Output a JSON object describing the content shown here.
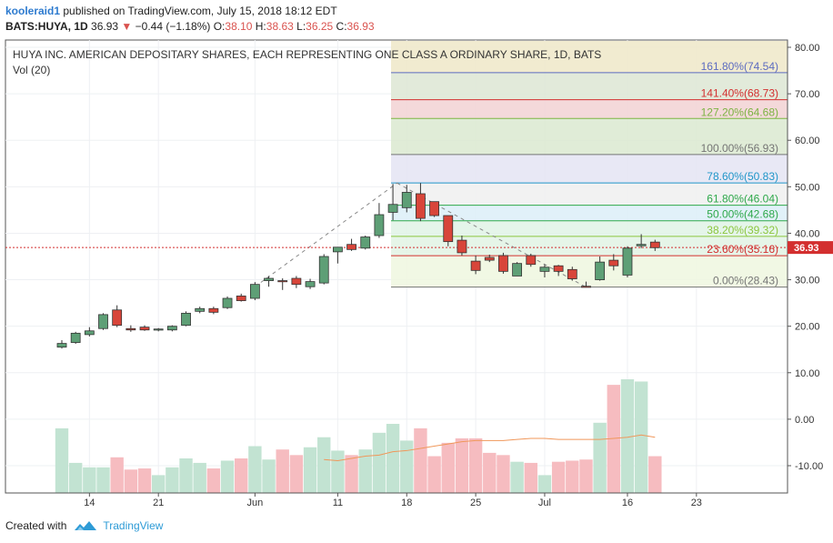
{
  "header": {
    "user": "kooleraid1",
    "published": " published on TradingView.com, July 15, 2018 18:12 EDT",
    "symbol": "BATS:HUYA, 1D",
    "last": "36.93",
    "arrow": "▼",
    "change": "−0.44 (−1.18%)",
    "o_label": "O:",
    "o": "38.10",
    "h_label": "H:",
    "h": "38.63",
    "l_label": "L:",
    "l": "36.25",
    "c_label": "C:",
    "c": "36.93"
  },
  "footer": {
    "created": "Created with",
    "brand": "TradingView"
  },
  "chart_data": {
    "type": "candlestick",
    "title": "HUYA INC. AMERICAN DEPOSITARY SHARES, EACH REPRESENTING ONE CLASS A ORDINARY SHARE, 1D, BATS",
    "volume_label": "Vol (20)",
    "ylim": [
      -15,
      82
    ],
    "y_ticks": [
      80,
      70,
      60,
      50,
      40,
      30,
      20,
      10,
      0,
      -10
    ],
    "y_tick_labels": [
      "80.00",
      "70.00",
      "60.00",
      "50.00",
      "40.00",
      "30.00",
      "20.00",
      "10.00",
      "0.00",
      "-10.00"
    ],
    "x_ticks": [
      {
        "day": 2,
        "label": "14"
      },
      {
        "day": 7,
        "label": "21"
      },
      {
        "day": 14,
        "label": "Jun"
      },
      {
        "day": 20,
        "label": "11"
      },
      {
        "day": 25,
        "label": "18"
      },
      {
        "day": 30,
        "label": "25"
      },
      {
        "day": 35,
        "label": "Jul"
      },
      {
        "day": 41,
        "label": "16"
      },
      {
        "day": 46,
        "label": "23"
      }
    ],
    "last_price": 36.93,
    "last_price_label": "36.93",
    "candles": [
      {
        "d": 0,
        "o": 15.5,
        "h": 17,
        "l": 15.2,
        "c": 16.3
      },
      {
        "d": 1,
        "o": 16.5,
        "h": 18.8,
        "l": 16.2,
        "c": 18.5
      },
      {
        "d": 2,
        "o": 18.2,
        "h": 19.8,
        "l": 17.8,
        "c": 19
      },
      {
        "d": 3,
        "o": 19.5,
        "h": 22.8,
        "l": 19.2,
        "c": 22.5
      },
      {
        "d": 4,
        "o": 23.5,
        "h": 24.5,
        "l": 19.8,
        "c": 20.2
      },
      {
        "d": 5,
        "o": 19.5,
        "h": 20.2,
        "l": 18.8,
        "c": 19.2
      },
      {
        "d": 6,
        "o": 19.8,
        "h": 20.2,
        "l": 19,
        "c": 19.2
      },
      {
        "d": 7,
        "o": 19.3,
        "h": 19.6,
        "l": 18.9,
        "c": 19.4
      },
      {
        "d": 8,
        "o": 19.2,
        "h": 20.2,
        "l": 18.9,
        "c": 20
      },
      {
        "d": 9,
        "o": 20.2,
        "h": 23.2,
        "l": 20,
        "c": 22.8
      },
      {
        "d": 10,
        "o": 23.2,
        "h": 24.2,
        "l": 22.8,
        "c": 23.8
      },
      {
        "d": 11,
        "o": 23.8,
        "h": 24.2,
        "l": 22.6,
        "c": 23
      },
      {
        "d": 12,
        "o": 24,
        "h": 26.4,
        "l": 23.7,
        "c": 26
      },
      {
        "d": 13,
        "o": 26.5,
        "h": 27,
        "l": 25.3,
        "c": 25.5
      },
      {
        "d": 14,
        "o": 26,
        "h": 29.5,
        "l": 25.6,
        "c": 29
      },
      {
        "d": 15,
        "o": 29.8,
        "h": 30.8,
        "l": 28.5,
        "c": 30.3
      },
      {
        "d": 16,
        "o": 29.8,
        "h": 30.3,
        "l": 27.8,
        "c": 29.6
      },
      {
        "d": 17,
        "o": 30.3,
        "h": 30.8,
        "l": 28.2,
        "c": 29
      },
      {
        "d": 18,
        "o": 28.5,
        "h": 30.2,
        "l": 28,
        "c": 29.6
      },
      {
        "d": 19,
        "o": 29.3,
        "h": 35.5,
        "l": 29,
        "c": 35
      },
      {
        "d": 20,
        "o": 36,
        "h": 36.8,
        "l": 33.5,
        "c": 37
      },
      {
        "d": 21,
        "o": 37.6,
        "h": 38.8,
        "l": 36.2,
        "c": 36.5
      },
      {
        "d": 22,
        "o": 36.8,
        "h": 39.5,
        "l": 36.5,
        "c": 39.2
      },
      {
        "d": 23,
        "o": 39.5,
        "h": 46.5,
        "l": 39,
        "c": 44
      },
      {
        "d": 24,
        "o": 44.5,
        "h": 50.6,
        "l": 42.8,
        "c": 46.2
      },
      {
        "d": 25,
        "o": 45.5,
        "h": 50.4,
        "l": 44.5,
        "c": 48.8
      },
      {
        "d": 26,
        "o": 48.5,
        "h": 50.8,
        "l": 42.6,
        "c": 43.2
      },
      {
        "d": 27,
        "o": 46.8,
        "h": 46.8,
        "l": 43.5,
        "c": 43.8
      },
      {
        "d": 28,
        "o": 43.8,
        "h": 43.8,
        "l": 37.2,
        "c": 38.2
      },
      {
        "d": 29,
        "o": 38.5,
        "h": 39.5,
        "l": 35.2,
        "c": 35.8
      },
      {
        "d": 30,
        "o": 34,
        "h": 35.2,
        "l": 31.2,
        "c": 32
      },
      {
        "d": 31,
        "o": 34.8,
        "h": 35.4,
        "l": 33.8,
        "c": 34.2
      },
      {
        "d": 32,
        "o": 35.2,
        "h": 35.8,
        "l": 31.3,
        "c": 31.8
      },
      {
        "d": 33,
        "o": 30.8,
        "h": 33.8,
        "l": 30.8,
        "c": 33.5
      },
      {
        "d": 34,
        "o": 35.2,
        "h": 35.6,
        "l": 32.8,
        "c": 33.3
      },
      {
        "d": 35,
        "o": 31.8,
        "h": 33.3,
        "l": 30.5,
        "c": 32.7
      },
      {
        "d": 36,
        "o": 33,
        "h": 33.2,
        "l": 30.8,
        "c": 31.8
      },
      {
        "d": 37,
        "o": 32.2,
        "h": 32.8,
        "l": 29.8,
        "c": 30.2
      },
      {
        "d": 38,
        "o": 28.6,
        "h": 29.6,
        "l": 28.4,
        "c": 28.5
      },
      {
        "d": 39,
        "o": 30,
        "h": 35,
        "l": 29.8,
        "c": 33.8
      },
      {
        "d": 40,
        "o": 34.2,
        "h": 35.5,
        "l": 32,
        "c": 33
      },
      {
        "d": 41,
        "o": 31,
        "h": 37.2,
        "l": 30.5,
        "c": 36.8
      },
      {
        "d": 42,
        "o": 37.3,
        "h": 39.8,
        "l": 36.8,
        "c": 37.6
      },
      {
        "d": 43,
        "o": 38.1,
        "h": 38.6,
        "l": 36.2,
        "c": 36.9
      }
    ],
    "volume_relative": [
      58,
      27,
      23,
      23,
      32,
      21,
      22,
      16,
      23,
      31,
      27,
      22,
      29,
      31,
      42,
      30,
      39,
      34,
      41,
      50,
      38,
      34,
      39,
      54,
      62,
      47,
      58,
      33,
      45,
      49,
      49,
      36,
      34,
      28,
      27,
      16,
      28,
      29,
      30,
      63,
      97,
      102,
      100,
      33
    ],
    "volume_ma_relative": [
      null,
      null,
      null,
      null,
      null,
      null,
      null,
      null,
      null,
      null,
      null,
      null,
      null,
      null,
      null,
      null,
      null,
      null,
      null,
      30,
      29,
      31,
      33,
      34,
      37,
      38,
      40,
      42,
      44,
      46,
      47,
      47,
      47,
      48,
      49,
      49,
      48,
      48,
      48,
      48,
      49,
      50,
      52,
      50
    ],
    "fibonacci": [
      {
        "level": 1.618,
        "label": "161.80%(74.54)",
        "value": 74.54,
        "color": "#5c6bc0"
      },
      {
        "level": 1.414,
        "label": "141.40%(68.73)",
        "value": 68.73,
        "color": "#d32f2f"
      },
      {
        "level": 1.272,
        "label": "127.20%(64.68)",
        "value": 64.68,
        "color": "#7cb342"
      },
      {
        "level": 1.0,
        "label": "100.00%(56.93)",
        "value": 56.93,
        "color": "#757575"
      },
      {
        "level": 0.786,
        "label": "78.60%(50.83)",
        "value": 50.83,
        "color": "#2196c9"
      },
      {
        "level": 0.618,
        "label": "61.80%(46.04)",
        "value": 46.04,
        "color": "#2ea84a"
      },
      {
        "level": 0.5,
        "label": "50.00%(42.68)",
        "value": 42.68,
        "color": "#2ea84a"
      },
      {
        "level": 0.382,
        "label": "38.20%(39.32)",
        "value": 39.32,
        "color": "#8cc63f"
      },
      {
        "level": 0.236,
        "label": "23.60%(35.16)",
        "value": 35.16,
        "color": "#d32f2f"
      },
      {
        "level": 0.0,
        "label": "0.00%(28.43)",
        "value": 28.43,
        "color": "#757575"
      }
    ],
    "fib_top_zone": 82,
    "trend_lines": [
      {
        "from": {
          "d": 14,
          "v": 28.5
        },
        "to": {
          "d": 24.3,
          "v": 50.8
        }
      },
      {
        "from": {
          "d": 24.3,
          "v": 50.8
        },
        "to": {
          "d": 38,
          "v": 28.4
        }
      }
    ],
    "colors": {
      "up": "#5e9f76",
      "down": "#d8453a",
      "up_vol": "#c2e3d2",
      "down_vol": "#f6bcc0",
      "vol_ma": "#f0975a",
      "last_price": "#d32f2f"
    }
  }
}
